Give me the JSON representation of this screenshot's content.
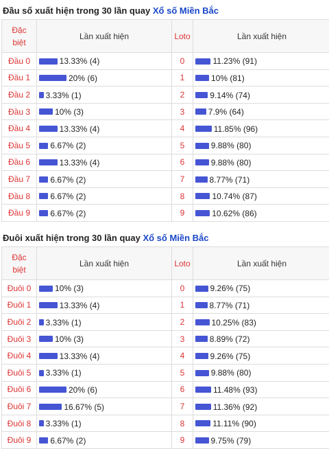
{
  "dau": {
    "title_prefix": "Đầu số xuất hiện trong 30 lần quay",
    "title_link": "Xổ số Miền Bắc",
    "headers": {
      "col1_line1": "Đặc",
      "col1_line2": "biệt",
      "col2": "Lần xuất hiện",
      "col3": "Loto",
      "col4": "Lần xuất hiện"
    },
    "rows": [
      {
        "label": "Đầu 0",
        "special_text": "13.33% (4)",
        "special_pct": 13.33,
        "loto": "0",
        "loto_text": "11.23% (91)",
        "loto_pct": 11.23
      },
      {
        "label": "Đầu 1",
        "special_text": "20% (6)",
        "special_pct": 20,
        "loto": "1",
        "loto_text": "10% (81)",
        "loto_pct": 10
      },
      {
        "label": "Đầu 2",
        "special_text": "3.33% (1)",
        "special_pct": 3.33,
        "loto": "2",
        "loto_text": "9.14% (74)",
        "loto_pct": 9.14
      },
      {
        "label": "Đầu 3",
        "special_text": "10% (3)",
        "special_pct": 10,
        "loto": "3",
        "loto_text": "7.9% (64)",
        "loto_pct": 7.9
      },
      {
        "label": "Đầu 4",
        "special_text": "13.33% (4)",
        "special_pct": 13.33,
        "loto": "4",
        "loto_text": "11.85% (96)",
        "loto_pct": 11.85
      },
      {
        "label": "Đầu 5",
        "special_text": "6.67% (2)",
        "special_pct": 6.67,
        "loto": "5",
        "loto_text": "9.88% (80)",
        "loto_pct": 9.88
      },
      {
        "label": "Đầu 6",
        "special_text": "13.33% (4)",
        "special_pct": 13.33,
        "loto": "6",
        "loto_text": "9.88% (80)",
        "loto_pct": 9.88
      },
      {
        "label": "Đầu 7",
        "special_text": "6.67% (2)",
        "special_pct": 6.67,
        "loto": "7",
        "loto_text": "8.77% (71)",
        "loto_pct": 8.77
      },
      {
        "label": "Đầu 8",
        "special_text": "6.67% (2)",
        "special_pct": 6.67,
        "loto": "8",
        "loto_text": "10.74% (87)",
        "loto_pct": 10.74
      },
      {
        "label": "Đầu 9",
        "special_text": "6.67% (2)",
        "special_pct": 6.67,
        "loto": "9",
        "loto_text": "10.62% (86)",
        "loto_pct": 10.62
      }
    ]
  },
  "duoi": {
    "title_prefix": "Đuôi xuất hiện trong 30 lần quay",
    "title_link": "Xổ số Miền Bắc",
    "headers": {
      "col1_line1": "Đặc",
      "col1_line2": "biệt",
      "col2": "Lần xuất hiện",
      "col3": "Loto",
      "col4": "Lần xuất hiện"
    },
    "rows": [
      {
        "label": "Đuôi 0",
        "special_text": "10% (3)",
        "special_pct": 10,
        "loto": "0",
        "loto_text": "9.26% (75)",
        "loto_pct": 9.26
      },
      {
        "label": "Đuôi 1",
        "special_text": "13.33% (4)",
        "special_pct": 13.33,
        "loto": "1",
        "loto_text": "8.77% (71)",
        "loto_pct": 8.77
      },
      {
        "label": "Đuôi 2",
        "special_text": "3.33% (1)",
        "special_pct": 3.33,
        "loto": "2",
        "loto_text": "10.25% (83)",
        "loto_pct": 10.25
      },
      {
        "label": "Đuôi 3",
        "special_text": "10% (3)",
        "special_pct": 10,
        "loto": "3",
        "loto_text": "8.89% (72)",
        "loto_pct": 8.89
      },
      {
        "label": "Đuôi 4",
        "special_text": "13.33% (4)",
        "special_pct": 13.33,
        "loto": "4",
        "loto_text": "9.26% (75)",
        "loto_pct": 9.26
      },
      {
        "label": "Đuôi 5",
        "special_text": "3.33% (1)",
        "special_pct": 3.33,
        "loto": "5",
        "loto_text": "9.88% (80)",
        "loto_pct": 9.88
      },
      {
        "label": "Đuôi 6",
        "special_text": "20% (6)",
        "special_pct": 20,
        "loto": "6",
        "loto_text": "11.48% (93)",
        "loto_pct": 11.48
      },
      {
        "label": "Đuôi 7",
        "special_text": "16.67% (5)",
        "special_pct": 16.67,
        "loto": "7",
        "loto_text": "11.36% (92)",
        "loto_pct": 11.36
      },
      {
        "label": "Đuôi 8",
        "special_text": "3.33% (1)",
        "special_pct": 3.33,
        "loto": "8",
        "loto_text": "11.11% (90)",
        "loto_pct": 11.11
      },
      {
        "label": "Đuôi 9",
        "special_text": "6.67% (2)",
        "special_pct": 6.67,
        "loto": "9",
        "loto_text": "9.75% (79)",
        "loto_pct": 9.75
      }
    ]
  },
  "colors": {
    "bar": "#4555d4",
    "label_red": "#d33",
    "link_blue": "#1a47c9"
  }
}
